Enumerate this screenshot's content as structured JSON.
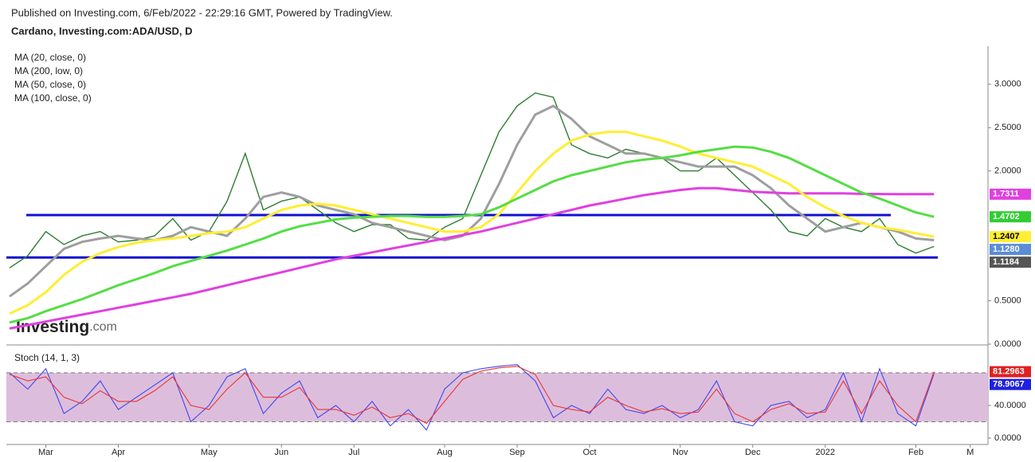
{
  "published": "Published on Investing.com, 6/Feb/2022 - 22:29:16 GMT, Powered by TradingView.",
  "watermark": [
    "Investing",
    ".com"
  ],
  "chart_data": [
    {
      "type": "line",
      "title": "Cardano, Investing.com:ADA/USD, D",
      "categories": [
        null,
        null,
        "Mar",
        null,
        null,
        null,
        "Apr",
        null,
        null,
        null,
        null,
        "May",
        null,
        null,
        null,
        "Jun",
        null,
        null,
        null,
        "Jul",
        null,
        null,
        null,
        null,
        "Aug",
        null,
        null,
        null,
        "Sep",
        null,
        null,
        null,
        "Oct",
        null,
        null,
        null,
        null,
        "Nov",
        null,
        null,
        null,
        "Dec",
        null,
        null,
        null,
        "2022",
        null,
        null,
        null,
        null,
        "Feb",
        null,
        null,
        "M"
      ],
      "values": [
        0.88,
        1.02,
        1.3,
        1.15,
        1.25,
        1.3,
        1.18,
        1.2,
        1.25,
        1.45,
        1.2,
        1.3,
        1.65,
        2.2,
        1.55,
        1.65,
        1.7,
        1.55,
        1.4,
        1.3,
        1.38,
        1.38,
        1.22,
        1.2,
        1.35,
        1.45,
        1.95,
        2.45,
        2.75,
        2.9,
        2.85,
        2.3,
        2.2,
        2.15,
        2.25,
        2.2,
        2.15,
        2.0,
        2.0,
        2.15,
        1.95,
        1.75,
        1.55,
        1.3,
        1.25,
        1.45,
        1.35,
        1.3,
        1.45,
        1.15,
        1.05,
        1.128,
        null,
        null
      ],
      "color": "#2e7d32",
      "series": [
        {
          "name": "MA (20, close, 0)",
          "color": "#9e9e9e",
          "values": [
            0.55,
            0.7,
            0.9,
            1.1,
            1.18,
            1.22,
            1.25,
            1.22,
            1.2,
            1.25,
            1.35,
            1.3,
            1.25,
            1.45,
            1.7,
            1.75,
            1.7,
            1.6,
            1.55,
            1.5,
            1.4,
            1.35,
            1.3,
            1.25,
            1.2,
            1.25,
            1.45,
            1.85,
            2.3,
            2.65,
            2.75,
            2.6,
            2.4,
            2.3,
            2.2,
            2.2,
            2.15,
            2.1,
            2.05,
            2.05,
            2.05,
            1.95,
            1.8,
            1.6,
            1.45,
            1.3,
            1.35,
            1.4,
            1.35,
            1.3,
            1.22,
            1.2,
            null,
            null
          ]
        },
        {
          "name": "MA (200, low, 0)",
          "color": "#e040e0",
          "values": [
            0.18,
            0.22,
            0.26,
            0.3,
            0.34,
            0.38,
            0.42,
            0.46,
            0.5,
            0.54,
            0.58,
            0.63,
            0.68,
            0.73,
            0.78,
            0.83,
            0.88,
            0.93,
            0.98,
            1.02,
            1.06,
            1.1,
            1.14,
            1.18,
            1.22,
            1.26,
            1.3,
            1.35,
            1.4,
            1.45,
            1.5,
            1.55,
            1.6,
            1.64,
            1.68,
            1.72,
            1.75,
            1.78,
            1.8,
            1.8,
            1.78,
            1.76,
            1.75,
            1.74,
            1.74,
            1.74,
            1.74,
            1.735,
            1.733,
            1.732,
            1.731,
            1.7311,
            null,
            null
          ]
        },
        {
          "name": "MA (50, close, 0)",
          "color": "#ffee33",
          "values": [
            0.35,
            0.45,
            0.6,
            0.8,
            0.95,
            1.05,
            1.12,
            1.17,
            1.2,
            1.22,
            1.25,
            1.28,
            1.3,
            1.35,
            1.45,
            1.55,
            1.6,
            1.62,
            1.6,
            1.55,
            1.5,
            1.45,
            1.4,
            1.35,
            1.3,
            1.3,
            1.35,
            1.5,
            1.75,
            2.0,
            2.2,
            2.35,
            2.42,
            2.45,
            2.45,
            2.4,
            2.35,
            2.28,
            2.2,
            2.15,
            2.1,
            2.05,
            1.95,
            1.85,
            1.7,
            1.58,
            1.48,
            1.4,
            1.35,
            1.32,
            1.28,
            1.2407,
            null,
            null
          ]
        },
        {
          "name": "MA (100, close, 0)",
          "color": "#55dd44",
          "values": [
            0.25,
            0.3,
            0.38,
            0.45,
            0.52,
            0.6,
            0.68,
            0.75,
            0.82,
            0.9,
            0.96,
            1.02,
            1.08,
            1.15,
            1.22,
            1.3,
            1.36,
            1.4,
            1.44,
            1.46,
            1.47,
            1.48,
            1.48,
            1.47,
            1.47,
            1.48,
            1.5,
            1.58,
            1.68,
            1.78,
            1.88,
            1.95,
            2.0,
            2.05,
            2.1,
            2.13,
            2.15,
            2.18,
            2.22,
            2.25,
            2.28,
            2.27,
            2.22,
            2.15,
            2.05,
            1.95,
            1.85,
            1.75,
            1.68,
            1.6,
            1.52,
            1.4702,
            null,
            null
          ]
        }
      ],
      "levels": [
        {
          "value": 1.49,
          "color": "#1010d0"
        },
        {
          "value": 1.0,
          "color": "#1010d0"
        }
      ],
      "price_labels": [
        {
          "value": 1.7311,
          "color": "#e040e0"
        },
        {
          "value": 1.4702,
          "color": "#33cc33"
        },
        {
          "value": 1.2407,
          "color": "#ffee33"
        },
        {
          "value": 1.128,
          "label": "1.1280",
          "color": "#5b8cd6"
        },
        {
          "value": 1.1184,
          "color": "#555555"
        }
      ],
      "ylim": [
        0,
        3.44
      ],
      "yticks": [
        {
          "value": 0,
          "label": "0.0000"
        },
        {
          "value": 0.5,
          "label": "0.5000"
        },
        {
          "value": 2,
          "label": "2.0000"
        },
        {
          "value": 2.5,
          "label": "2.5000"
        },
        {
          "value": 3,
          "label": "3.0000"
        }
      ]
    },
    {
      "type": "line",
      "title": "Stoch (14, 1, 3)",
      "series": [
        {
          "color": "#4444ee",
          "values": [
            80,
            60,
            85,
            30,
            45,
            70,
            35,
            50,
            65,
            80,
            20,
            40,
            75,
            85,
            30,
            55,
            70,
            25,
            40,
            20,
            45,
            15,
            35,
            10,
            60,
            80,
            85,
            88,
            90,
            70,
            25,
            40,
            30,
            60,
            35,
            30,
            40,
            25,
            35,
            70,
            20,
            15,
            40,
            45,
            25,
            35,
            80,
            20,
            85,
            30,
            15,
            78.9067,
            null,
            null
          ]
        },
        {
          "color": "#ee3333",
          "values": [
            78,
            70,
            75,
            50,
            42,
            58,
            45,
            45,
            58,
            75,
            40,
            35,
            60,
            80,
            50,
            50,
            62,
            35,
            35,
            28,
            38,
            25,
            30,
            18,
            45,
            72,
            82,
            86,
            88,
            78,
            40,
            35,
            32,
            50,
            40,
            32,
            36,
            30,
            32,
            60,
            30,
            20,
            35,
            42,
            30,
            32,
            70,
            30,
            70,
            40,
            20,
            81.2963,
            null,
            null
          ]
        }
      ],
      "bands": [
        20,
        80
      ],
      "band_color": "#dcbedc",
      "price_labels": [
        {
          "value": 81.2963,
          "color": "#e02020"
        },
        {
          "value": 78.9067,
          "color": "#2020e0"
        }
      ],
      "ylim": [
        -7.8,
        111.2
      ],
      "yticks": [
        {
          "value": 0,
          "label": "0.0000"
        },
        {
          "value": 40,
          "label": "40.0000"
        }
      ]
    }
  ]
}
